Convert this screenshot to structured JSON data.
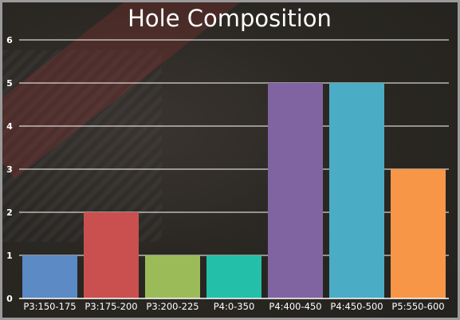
{
  "chart_data": {
    "type": "bar",
    "title": "Hole Composition",
    "xlabel": "",
    "ylabel": "",
    "categories": [
      "P3:150-175",
      "P3:175-200",
      "P3:200-225",
      "P4:0-350",
      "P4:400-450",
      "P4:450-500",
      "P5:550-600"
    ],
    "values": [
      1,
      2,
      1,
      1,
      5,
      5,
      3
    ],
    "colors": [
      "#5b8ac4",
      "#c9504f",
      "#9bbb59",
      "#24bfa8",
      "#8064a2",
      "#4bacc6",
      "#f79646"
    ],
    "ylim": [
      0,
      6
    ],
    "yticks": [
      0,
      1,
      2,
      3,
      4,
      5,
      6
    ],
    "grid": true,
    "legend": "none"
  }
}
